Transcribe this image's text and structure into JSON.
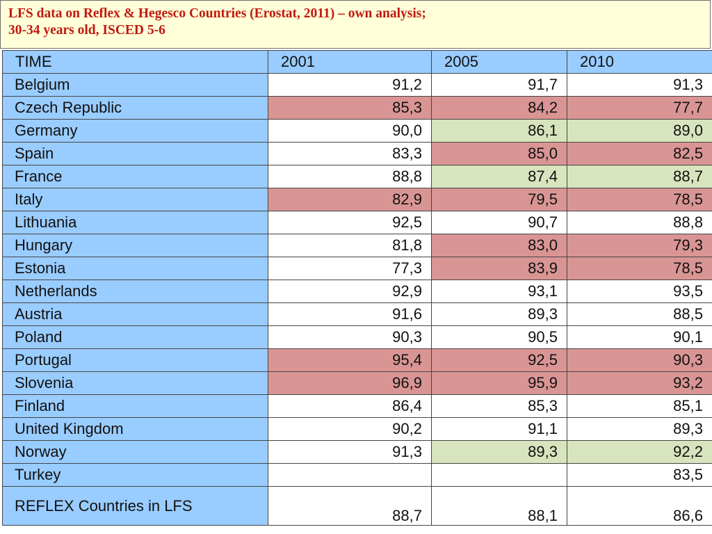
{
  "title": {
    "line1": "LFS data on Reflex & Hegesco Countries (Erostat, 2011) – own analysis;",
    "line2": "30-34 years old, ISCED 5-6"
  },
  "table": {
    "header": [
      "TIME",
      "2001",
      "2005",
      "2010"
    ],
    "rows": [
      {
        "country": "Belgium",
        "values": [
          "91,2",
          "91,7",
          "91,3"
        ],
        "highlight": [
          "none",
          "none",
          "none"
        ]
      },
      {
        "country": "Czech Republic",
        "values": [
          "85,3",
          "84,2",
          "77,7"
        ],
        "highlight": [
          "red",
          "red",
          "red"
        ]
      },
      {
        "country": "Germany",
        "values": [
          "90,0",
          "86,1",
          "89,0"
        ],
        "highlight": [
          "none",
          "green",
          "green"
        ]
      },
      {
        "country": "Spain",
        "values": [
          "83,3",
          "85,0",
          "82,5"
        ],
        "highlight": [
          "none",
          "red",
          "red"
        ]
      },
      {
        "country": "France",
        "values": [
          "88,8",
          "87,4",
          "88,7"
        ],
        "highlight": [
          "none",
          "green",
          "green"
        ]
      },
      {
        "country": "Italy",
        "values": [
          "82,9",
          "79,5",
          "78,5"
        ],
        "highlight": [
          "red",
          "red",
          "red"
        ]
      },
      {
        "country": "Lithuania",
        "values": [
          "92,5",
          "90,7",
          "88,8"
        ],
        "highlight": [
          "none",
          "none",
          "none"
        ]
      },
      {
        "country": "Hungary",
        "values": [
          "81,8",
          "83,0",
          "79,3"
        ],
        "highlight": [
          "none",
          "red",
          "red"
        ]
      },
      {
        "country": "Estonia",
        "values": [
          "77,3",
          "83,9",
          "78,5"
        ],
        "highlight": [
          "none",
          "red",
          "red"
        ]
      },
      {
        "country": "Netherlands",
        "values": [
          "92,9",
          "93,1",
          "93,5"
        ],
        "highlight": [
          "none",
          "none",
          "none"
        ]
      },
      {
        "country": "Austria",
        "values": [
          "91,6",
          "89,3",
          "88,5"
        ],
        "highlight": [
          "none",
          "none",
          "none"
        ]
      },
      {
        "country": "Poland",
        "values": [
          "90,3",
          "90,5",
          "90,1"
        ],
        "highlight": [
          "none",
          "none",
          "none"
        ]
      },
      {
        "country": "Portugal",
        "values": [
          "95,4",
          "92,5",
          "90,3"
        ],
        "highlight": [
          "red",
          "red",
          "red"
        ]
      },
      {
        "country": "Slovenia",
        "values": [
          "96,9",
          "95,9",
          "93,2"
        ],
        "highlight": [
          "red",
          "red",
          "red"
        ]
      },
      {
        "country": "Finland",
        "values": [
          "86,4",
          "85,3",
          "85,1"
        ],
        "highlight": [
          "none",
          "none",
          "none"
        ]
      },
      {
        "country": "United Kingdom",
        "values": [
          "90,2",
          "91,1",
          "89,3"
        ],
        "highlight": [
          "none",
          "none",
          "none"
        ]
      },
      {
        "country": "Norway",
        "values": [
          "91,3",
          "89,3",
          "92,2"
        ],
        "highlight": [
          "none",
          "green",
          "green"
        ]
      },
      {
        "country": "Turkey",
        "values": [
          "",
          "",
          "83,5"
        ],
        "highlight": [
          "none",
          "none",
          "none"
        ]
      },
      {
        "country": "REFLEX Countries in LFS",
        "values": [
          "88,7",
          "88,1",
          "86,6"
        ],
        "highlight": [
          "none",
          "none",
          "none"
        ]
      }
    ]
  },
  "colors": {
    "title_text": "#c01a10",
    "title_bg": "#ffffd9",
    "label_bg": "#99ccff",
    "red_highlight": "#d99594",
    "green_highlight": "#d7e4bd"
  }
}
